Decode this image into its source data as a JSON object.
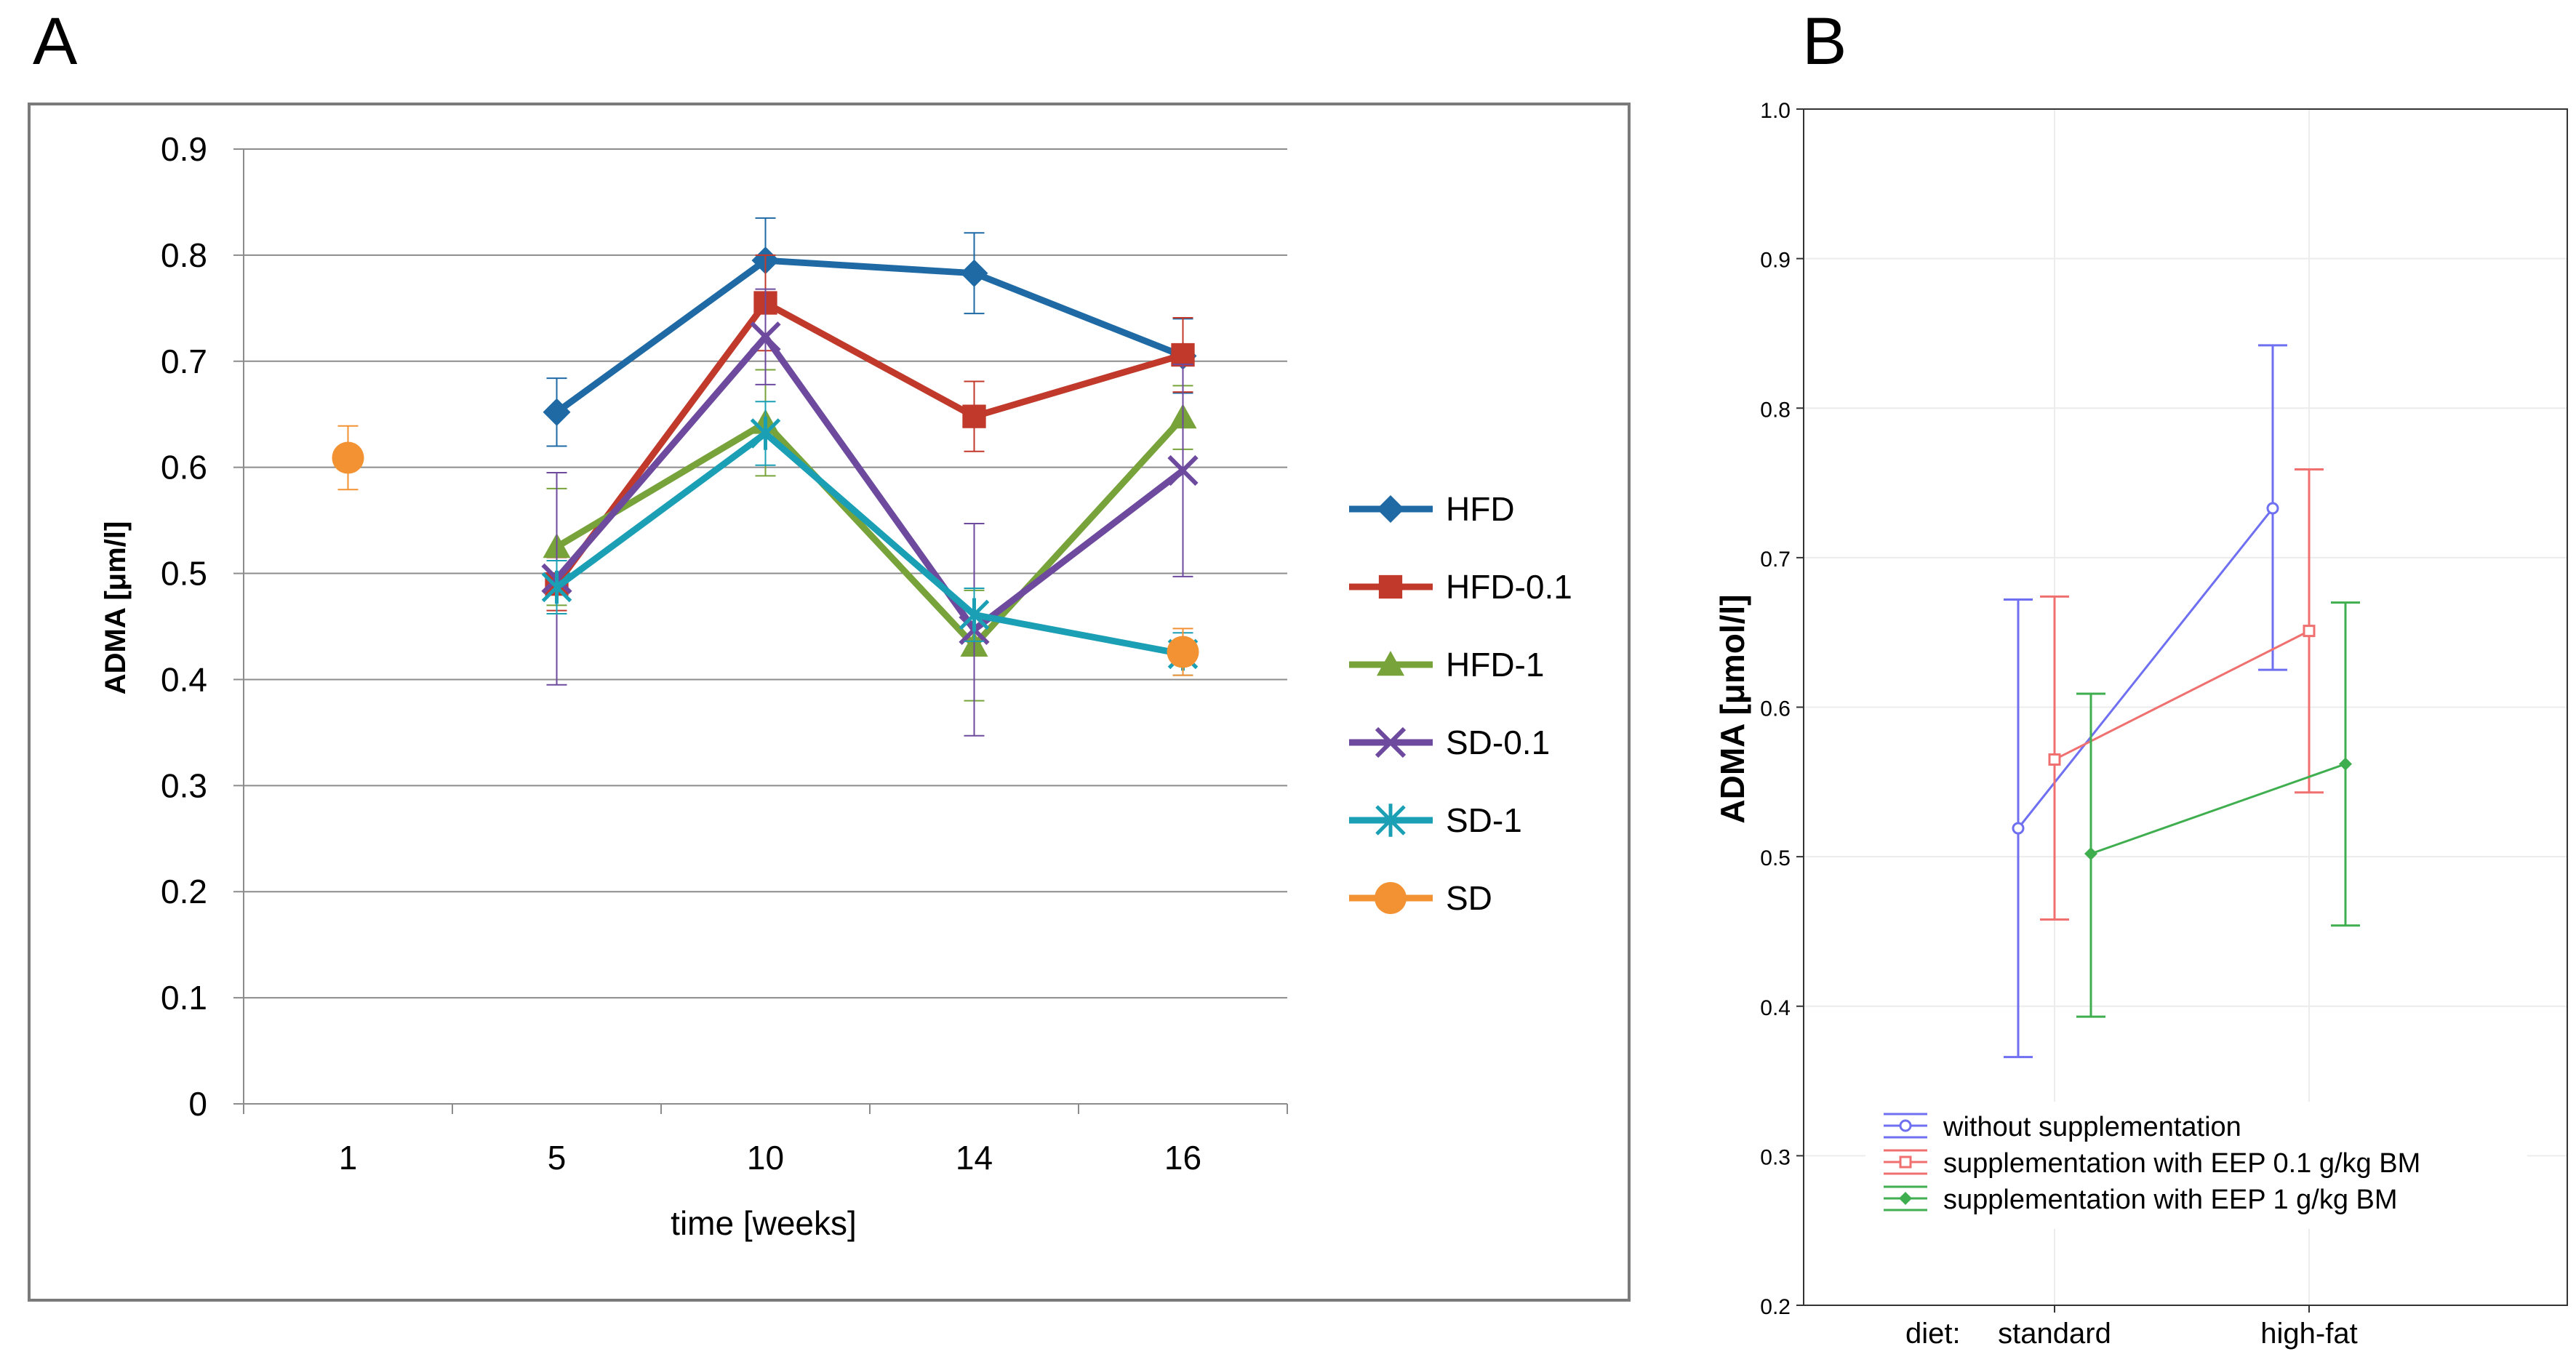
{
  "panels": {
    "a_letter": "A",
    "b_letter": "B"
  },
  "chart_data": [
    {
      "type": "line",
      "panel": "A",
      "xlabel": "time [weeks]",
      "ylabel": "ADMA  [μm/l]",
      "categories": [
        "1",
        "5",
        "10",
        "14",
        "16"
      ],
      "ylim": [
        0,
        0.9
      ],
      "yticks": [
        "0",
        "0.1",
        "0.2",
        "0.3",
        "0.4",
        "0.5",
        "0.6",
        "0.7",
        "0.8",
        "0.9"
      ],
      "grid": true,
      "legend_position": "right",
      "series": [
        {
          "name": "HFD",
          "color": "#1f6aa5",
          "marker": "diamond",
          "values": [
            null,
            0.652,
            0.795,
            0.783,
            0.705
          ],
          "errors": [
            null,
            0.032,
            0.04,
            0.038,
            0.035
          ]
        },
        {
          "name": "HFD-0.1",
          "color": "#c0392b",
          "marker": "square",
          "values": [
            null,
            0.49,
            0.755,
            0.648,
            0.706
          ],
          "errors": [
            null,
            0.025,
            0.045,
            0.033,
            0.035
          ]
        },
        {
          "name": "HFD-1",
          "color": "#77a33a",
          "marker": "triangle",
          "values": [
            null,
            0.525,
            0.642,
            0.432,
            0.647
          ],
          "errors": [
            null,
            0.055,
            0.05,
            0.052,
            0.03
          ]
        },
        {
          "name": "SD-0.1",
          "color": "#6e4a9e",
          "marker": "x",
          "values": [
            null,
            0.495,
            0.723,
            0.447,
            0.597
          ],
          "errors": [
            null,
            0.1,
            0.045,
            0.1,
            0.1
          ]
        },
        {
          "name": "SD-1",
          "color": "#1b9fb5",
          "marker": "star",
          "values": [
            null,
            0.487,
            0.632,
            0.461,
            0.424
          ],
          "errors": [
            null,
            0.025,
            0.03,
            0.025,
            0.02
          ]
        },
        {
          "name": "SD",
          "color": "#f39232",
          "marker": "circle",
          "values": [
            0.609,
            null,
            null,
            null,
            0.426
          ],
          "errors": [
            0.03,
            null,
            null,
            null,
            0.022
          ]
        }
      ]
    },
    {
      "type": "line",
      "panel": "B",
      "xlabel_prefix": "diet:",
      "ylabel": "ADMA [μmol/l]",
      "categories": [
        "standard",
        "high-fat"
      ],
      "ylim": [
        0.2,
        1.0
      ],
      "yticks": [
        "0.2",
        "0.3",
        "0.4",
        "0.5",
        "0.6",
        "0.7",
        "0.8",
        "0.9",
        "1.0"
      ],
      "grid": true,
      "legend_position": "bottom-left",
      "series": [
        {
          "name": "without  supplementation",
          "color": "#6f6ff2",
          "marker": "circle",
          "values": [
            0.519,
            0.733
          ],
          "lower": [
            0.366,
            0.625
          ],
          "upper": [
            0.672,
            0.842
          ]
        },
        {
          "name": "supplementation  with  EEP 0.1 g/kg BM",
          "color": "#f07070",
          "marker": "square",
          "values": [
            0.565,
            0.651
          ],
          "lower": [
            0.458,
            0.543
          ],
          "upper": [
            0.674,
            0.759
          ]
        },
        {
          "name": "supplementation  with  EEP 1 g/kg BM",
          "color": "#3fae4f",
          "marker": "diamond",
          "values": [
            0.502,
            0.562
          ],
          "lower": [
            0.393,
            0.454
          ],
          "upper": [
            0.609,
            0.67
          ]
        }
      ]
    }
  ]
}
